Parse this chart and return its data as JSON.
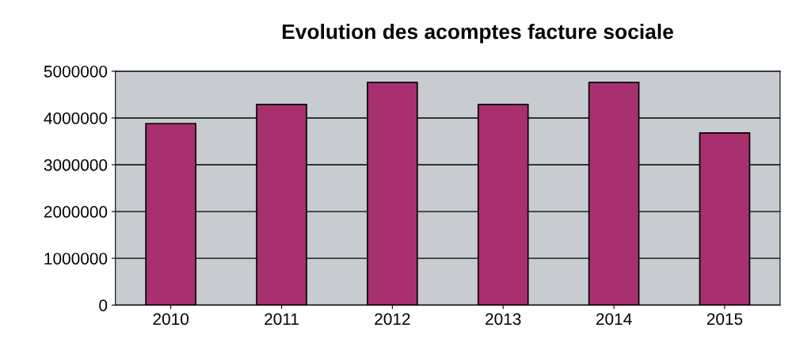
{
  "chart_data": {
    "type": "bar",
    "title": "Evolution des acomptes facture sociale",
    "categories": [
      "2010",
      "2011",
      "2012",
      "2013",
      "2014",
      "2015"
    ],
    "values": [
      3880000,
      4290000,
      4760000,
      4290000,
      4760000,
      3680000
    ],
    "color": "#a8306e",
    "ylim": [
      0,
      5000000
    ],
    "yticks": [
      0,
      1000000,
      2000000,
      3000000,
      4000000,
      5000000
    ],
    "grid": "y"
  }
}
